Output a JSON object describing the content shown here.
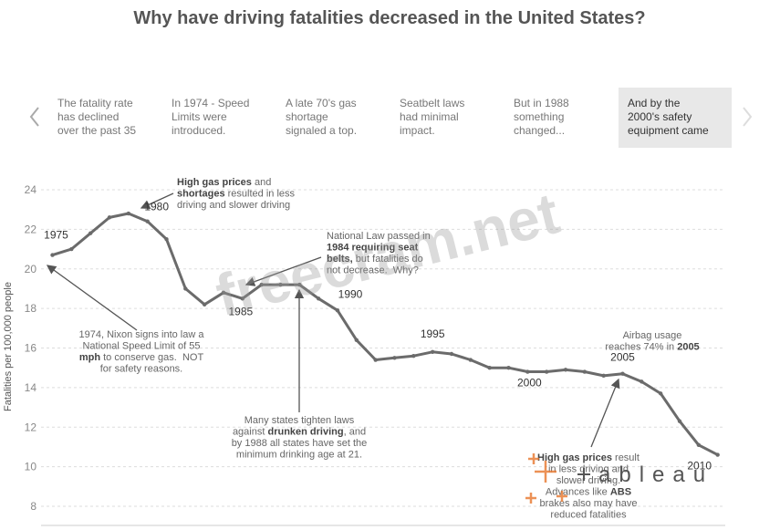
{
  "title": "Why have driving fatalities decreased in the United States?",
  "story_points": [
    {
      "lines": [
        "The fatality rate",
        "has declined",
        "over the past 35"
      ]
    },
    {
      "lines": [
        "In 1974 - Speed",
        "Limits were",
        "introduced."
      ]
    },
    {
      "lines": [
        "A late 70's gas",
        "shortage",
        "signaled a top."
      ]
    },
    {
      "lines": [
        "Seatbelt laws",
        "had minimal",
        "impact."
      ]
    },
    {
      "lines": [
        "But in 1988",
        "something",
        "changed..."
      ]
    },
    {
      "lines": [
        "And by the",
        "2000's safety",
        "equipment came"
      ],
      "selected": true
    }
  ],
  "watermark": "freecram.net",
  "logo": "ableau",
  "chart_data": {
    "type": "line",
    "y_label": "Fatalities per 100,000 people",
    "x": [
      1975,
      1976,
      1977,
      1978,
      1979,
      1980,
      1981,
      1982,
      1983,
      1984,
      1985,
      1986,
      1987,
      1988,
      1989,
      1990,
      1991,
      1992,
      1993,
      1994,
      1995,
      1996,
      1997,
      1998,
      1999,
      2000,
      2001,
      2002,
      2003,
      2004,
      2005,
      2006,
      2007,
      2008,
      2009,
      2010
    ],
    "series": [
      {
        "name": "Fatalities",
        "color": "#6b6b6b",
        "values": [
          20.7,
          21.0,
          21.8,
          22.6,
          22.8,
          22.4,
          21.5,
          19.0,
          18.2,
          18.8,
          18.5,
          19.2,
          19.2,
          19.2,
          18.5,
          17.9,
          16.4,
          15.4,
          15.5,
          15.6,
          15.8,
          15.7,
          15.4,
          15.0,
          15.0,
          14.8,
          14.8,
          14.9,
          14.8,
          14.6,
          14.7,
          14.3,
          13.7,
          12.3,
          11.1,
          10.6
        ]
      }
    ],
    "xlim": [
      1974.4,
      2010.4
    ],
    "ylim": [
      8,
      24
    ],
    "yticks": [
      8,
      10,
      12,
      14,
      16,
      18,
      20,
      22,
      24
    ],
    "grid": true,
    "year_labels": [
      1975,
      1980,
      1985,
      1990,
      1995,
      2000,
      2005,
      2010
    ],
    "annotations": [
      {
        "lines": [
          [
            {
              "text": "High gas prices",
              "bold": true
            },
            {
              "text": " and"
            }
          ],
          [
            {
              "text": "shortages",
              "bold": true
            },
            {
              "text": " resulted in less"
            }
          ],
          [
            {
              "text": "driving and slower driving"
            }
          ]
        ]
      },
      {
        "lines": [
          [
            {
              "text": "National Law passed in"
            }
          ],
          [
            {
              "text": "1984 requiring seat",
              "bold": true
            }
          ],
          [
            {
              "text": "belts,",
              "bold": true
            },
            {
              "text": " but fatalities do"
            }
          ],
          [
            {
              "text": "not decrease.  Why?"
            }
          ]
        ]
      },
      {
        "lines": [
          [
            {
              "text": "1974, Nixon signs into law a"
            }
          ],
          [
            {
              "text": "National Speed Limit of 55"
            }
          ],
          [
            {
              "text": "mph",
              "bold": true
            },
            {
              "text": " to conserve gas.  NOT"
            }
          ],
          [
            {
              "text": "for safety reasons."
            }
          ]
        ]
      },
      {
        "lines": [
          [
            {
              "text": "Many states tighten laws"
            }
          ],
          [
            {
              "text": "against "
            },
            {
              "text": "drunken driving",
              "bold": true
            },
            {
              "text": ", and"
            }
          ],
          [
            {
              "text": "by 1988 all states have set the"
            }
          ],
          [
            {
              "text": "minimum drinking age at 21."
            }
          ]
        ]
      },
      {
        "lines": [
          [
            {
              "text": "Airbag usage"
            }
          ],
          [
            {
              "text": "reaches 74% in "
            },
            {
              "text": "2005",
              "bold": true
            }
          ]
        ]
      },
      {
        "lines": [
          [
            {
              "text": "High gas prices",
              "bold": true
            },
            {
              "text": " result"
            }
          ],
          [
            {
              "text": "in less driving and"
            }
          ],
          [
            {
              "text": "slower driving."
            }
          ],
          [
            {
              "text": "Advances like "
            },
            {
              "text": "ABS",
              "bold": true
            }
          ],
          [
            {
              "text": "brakes also may have"
            }
          ],
          [
            {
              "text": "reduced fatalities"
            }
          ]
        ]
      }
    ]
  }
}
